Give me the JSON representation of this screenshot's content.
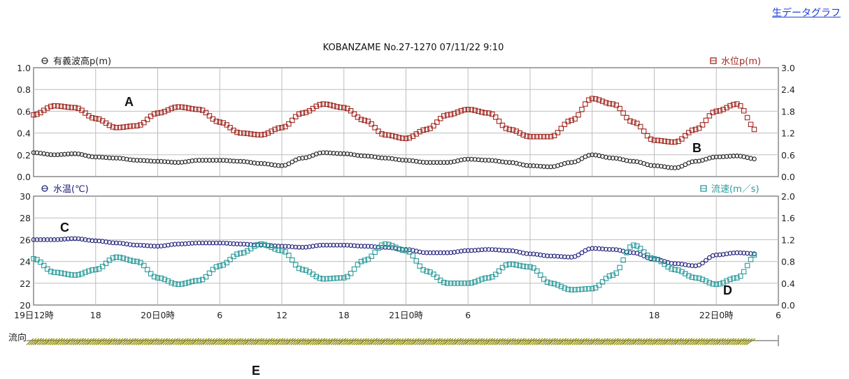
{
  "top_link": {
    "label": "生データグラフ"
  },
  "title": "KOBANZAME No.27-1270 07/11/22  9:10",
  "colors": {
    "wave": "#222222",
    "level": "#a0261e",
    "temp": "#1e1e7a",
    "current": "#2a9a9a",
    "flow": "#8c8a00"
  },
  "panel1": {
    "left_label": "有義波高p(m)",
    "right_label": "水位p(m)",
    "left_icon": "circle-marker-icon",
    "right_icon": "square-marker-icon",
    "left_ticks": [
      "1.0",
      "0.8",
      "0.6",
      "0.4",
      "0.2",
      "0.0"
    ],
    "right_ticks": [
      "3.0",
      "2.4",
      "1.8",
      "1.2",
      "0.6",
      "0.0"
    ]
  },
  "panel2": {
    "left_label": "水温(℃)",
    "right_label": "流速(m／s)",
    "left_icon": "circle-marker-icon",
    "right_icon": "square-marker-icon",
    "left_ticks": [
      "30",
      "28",
      "26",
      "24",
      "22",
      "20"
    ],
    "right_ticks": [
      "2.0",
      "1.6",
      "1.2",
      "0.8",
      "0.4",
      "0.0"
    ]
  },
  "x_ticks": [
    "19日12時",
    "18",
    "20日0時",
    "6",
    "12",
    "18",
    "21日0時",
    "6",
    "",
    "",
    "18",
    "22日0時",
    "6"
  ],
  "flow_label": "流向",
  "annotations": [
    "A",
    "B",
    "C",
    "D",
    "E"
  ],
  "chart_data": [
    {
      "type": "scatter",
      "ylim": [
        0,
        1.0
      ],
      "y2lim": [
        0,
        3.0
      ],
      "xlim_hours": [
        0,
        72
      ],
      "series": [
        {
          "name": "有義波高p(m)",
          "axis": "left",
          "x": [
            0,
            2,
            4,
            6,
            8,
            10,
            12,
            14,
            16,
            18,
            20,
            22,
            24,
            26,
            28,
            30,
            32,
            34,
            36,
            38,
            40,
            42,
            44,
            46,
            48,
            50,
            52,
            54,
            56,
            58,
            60,
            62,
            64,
            66,
            68,
            70
          ],
          "values": [
            0.22,
            0.2,
            0.21,
            0.18,
            0.17,
            0.15,
            0.14,
            0.13,
            0.15,
            0.15,
            0.14,
            0.12,
            0.1,
            0.17,
            0.22,
            0.21,
            0.19,
            0.17,
            0.15,
            0.13,
            0.13,
            0.16,
            0.15,
            0.13,
            0.1,
            0.09,
            0.13,
            0.2,
            0.17,
            0.14,
            0.1,
            0.08,
            0.14,
            0.18,
            0.19,
            0.16
          ]
        },
        {
          "name": "水位p(m)",
          "axis": "right",
          "x": [
            0,
            2,
            4,
            6,
            8,
            10,
            12,
            14,
            16,
            18,
            20,
            22,
            24,
            26,
            28,
            30,
            32,
            34,
            36,
            38,
            40,
            42,
            44,
            46,
            48,
            50,
            52,
            54,
            56,
            58,
            60,
            62,
            64,
            66,
            68,
            70
          ],
          "values": [
            1.7,
            1.95,
            1.9,
            1.6,
            1.35,
            1.4,
            1.75,
            1.92,
            1.85,
            1.5,
            1.2,
            1.15,
            1.35,
            1.75,
            2.0,
            1.9,
            1.55,
            1.15,
            1.05,
            1.3,
            1.7,
            1.85,
            1.75,
            1.3,
            1.1,
            1.1,
            1.55,
            2.15,
            2.0,
            1.5,
            1.0,
            0.95,
            1.3,
            1.8,
            2.0,
            1.25
          ]
        }
      ]
    },
    {
      "type": "scatter",
      "ylim": [
        20,
        30
      ],
      "y2lim": [
        0,
        2.0
      ],
      "xlim_hours": [
        0,
        72
      ],
      "series": [
        {
          "name": "水温(℃)",
          "axis": "left",
          "x": [
            0,
            2,
            4,
            6,
            8,
            10,
            12,
            14,
            16,
            18,
            20,
            22,
            24,
            26,
            28,
            30,
            32,
            34,
            36,
            38,
            40,
            42,
            44,
            46,
            48,
            50,
            52,
            54,
            56,
            58,
            60,
            62,
            64,
            66,
            68,
            70
          ],
          "values": [
            26.0,
            26.0,
            26.1,
            25.9,
            25.7,
            25.5,
            25.4,
            25.6,
            25.7,
            25.7,
            25.6,
            25.5,
            25.4,
            25.3,
            25.5,
            25.5,
            25.4,
            25.3,
            25.1,
            24.8,
            24.8,
            25.0,
            25.1,
            25.0,
            24.7,
            24.5,
            24.4,
            25.2,
            25.1,
            24.8,
            24.2,
            23.8,
            23.6,
            24.6,
            24.8,
            24.7
          ]
        },
        {
          "name": "流速(m／s)",
          "axis": "right",
          "x": [
            0,
            2,
            4,
            6,
            8,
            10,
            12,
            14,
            16,
            18,
            20,
            22,
            24,
            26,
            28,
            30,
            32,
            34,
            36,
            38,
            40,
            42,
            44,
            46,
            48,
            50,
            52,
            54,
            56,
            58,
            60,
            62,
            64,
            66,
            68,
            70
          ],
          "values": [
            0.85,
            0.6,
            0.55,
            0.65,
            0.88,
            0.8,
            0.5,
            0.38,
            0.45,
            0.72,
            0.95,
            1.12,
            1.0,
            0.65,
            0.48,
            0.5,
            0.82,
            1.12,
            1.0,
            0.62,
            0.4,
            0.4,
            0.5,
            0.75,
            0.7,
            0.4,
            0.28,
            0.3,
            0.55,
            1.1,
            0.85,
            0.65,
            0.5,
            0.38,
            0.5,
            0.95
          ]
        }
      ]
    }
  ]
}
